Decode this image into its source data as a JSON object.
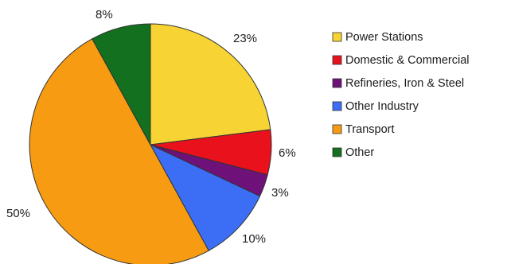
{
  "chart_data": {
    "type": "pie",
    "categories": [
      "Power Stations",
      "Domestic & Commercial",
      "Refineries, Iron & Steel",
      "Other Industry",
      "Transport",
      "Other"
    ],
    "values": [
      23,
      6,
      3,
      10,
      50,
      8
    ],
    "labels": [
      "23%",
      "6%",
      "3%",
      "10%",
      "50%",
      "8%"
    ],
    "colors": [
      "#f7d433",
      "#e8111c",
      "#6e1179",
      "#3b6ef5",
      "#f79b12",
      "#12701f"
    ],
    "legend_position": "right",
    "start": "12 o'clock",
    "direction": "clockwise"
  }
}
